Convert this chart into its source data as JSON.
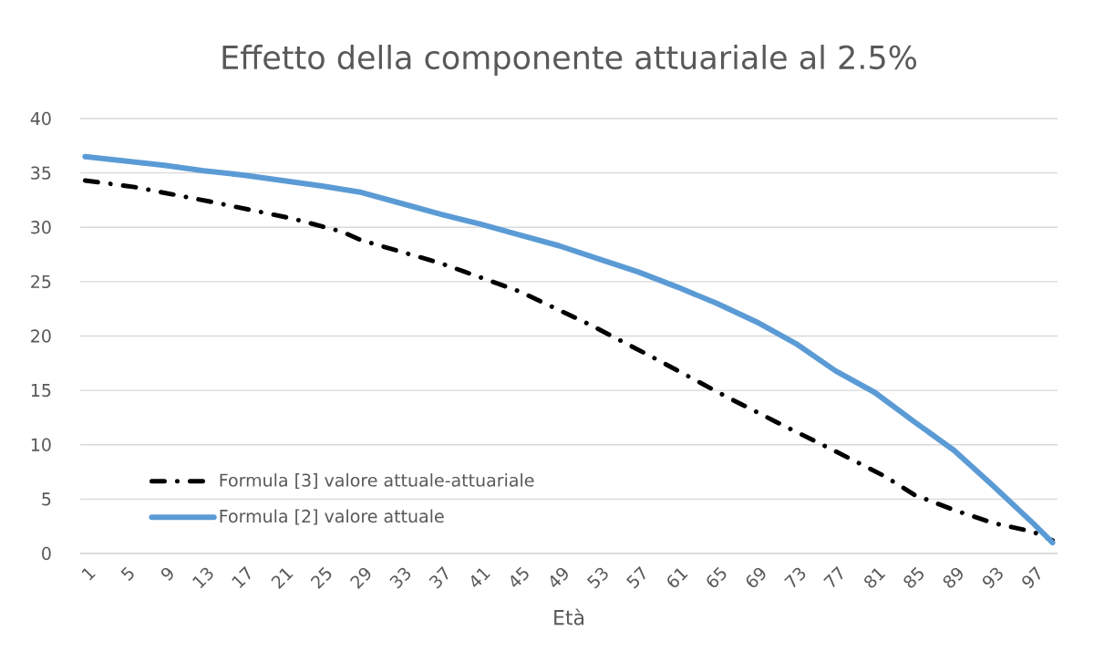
{
  "chart_data": {
    "type": "line",
    "title": "Effetto della componente attuariale al 2.5%",
    "xlabel": "Età",
    "xlim": [
      0.5,
      99.5
    ],
    "xticks": [
      1,
      5,
      9,
      13,
      17,
      21,
      25,
      29,
      33,
      37,
      41,
      45,
      49,
      53,
      57,
      61,
      65,
      69,
      73,
      77,
      81,
      85,
      89,
      93,
      97
    ],
    "ylim": [
      0,
      40
    ],
    "yticks": [
      0,
      5,
      10,
      15,
      20,
      25,
      30,
      35,
      40
    ],
    "grid": "y",
    "legend": "bottom left",
    "marker": "none",
    "series": [
      {
        "name": "Formula [3] valore attuale-attuariale",
        "color": "#000000",
        "line_style": "dashdot",
        "x": [
          1,
          6,
          14,
          22,
          27,
          29,
          37,
          45,
          52,
          59,
          66,
          71,
          77,
          82,
          85,
          89,
          93,
          97,
          99
        ],
        "values": [
          34.3,
          33.7,
          32.3,
          30.8,
          29.6,
          28.8,
          26.7,
          24.1,
          21.1,
          17.8,
          14.4,
          12.1,
          9.4,
          7.1,
          5.4,
          4.0,
          2.8,
          2.0,
          1.2
        ]
      },
      {
        "name": "Formula [2] valore attuale",
        "color": "#5b9bd5",
        "line_style": "solid",
        "x": [
          1,
          5,
          9,
          13,
          17,
          21,
          25,
          29,
          33,
          37,
          41,
          45,
          49,
          53,
          57,
          61,
          65,
          69,
          73,
          77,
          81,
          85,
          89,
          93,
          97,
          99
        ],
        "values": [
          36.5,
          36.1,
          35.7,
          35.2,
          34.8,
          34.3,
          33.8,
          33.2,
          32.2,
          31.2,
          30.3,
          29.3,
          28.3,
          27.1,
          25.9,
          24.5,
          23.0,
          21.3,
          19.3,
          16.8,
          14.8,
          12.1,
          9.5,
          6.2,
          2.8,
          1.0
        ]
      }
    ]
  }
}
